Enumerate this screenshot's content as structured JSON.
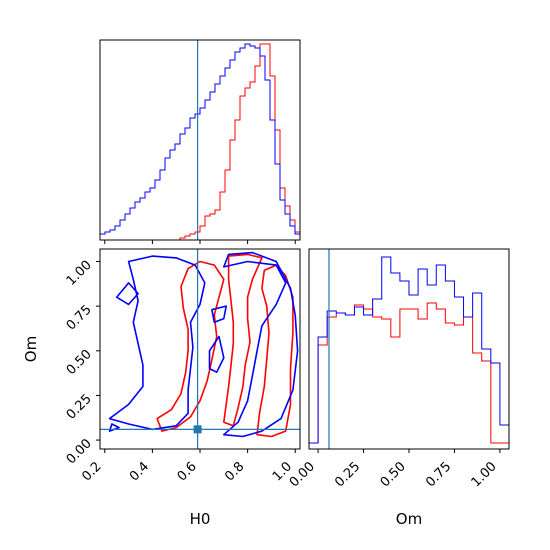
{
  "chart_data": {
    "type": "corner",
    "variables": [
      "H0",
      "Om"
    ],
    "truth": {
      "H0": 0.59,
      "Om": 0.06
    },
    "colors": {
      "red_series": "#ff0000",
      "blue_series": "#0000ff",
      "truth_line": "#1f77b4"
    },
    "panels": [
      {
        "id": "hist_H0",
        "type": "step-histogram",
        "xlim": [
          0.18,
          1.02
        ],
        "xticks": [
          0.2,
          0.4,
          0.6,
          0.8,
          1.0
        ],
        "tick_labels_shown": false,
        "bin_edges": [
          0.18,
          0.201,
          0.222,
          0.243,
          0.264,
          0.285,
          0.306,
          0.327,
          0.348,
          0.369,
          0.39,
          0.411,
          0.432,
          0.453,
          0.474,
          0.495,
          0.516,
          0.537,
          0.558,
          0.579,
          0.6,
          0.621,
          0.642,
          0.663,
          0.684,
          0.705,
          0.726,
          0.747,
          0.768,
          0.789,
          0.81,
          0.831,
          0.852,
          0.873,
          0.894,
          0.915,
          0.936,
          0.957,
          0.978,
          0.999,
          1.02
        ],
        "series": [
          {
            "name": "red",
            "values": [
              0,
              0,
              0,
              0,
              0,
              0,
              0,
              0,
              0,
              0,
              0,
              0,
              0,
              0,
              0,
              0,
              0.01,
              0.02,
              0.03,
              0.04,
              0.07,
              0.12,
              0.13,
              0.15,
              0.24,
              0.35,
              0.5,
              0.6,
              0.72,
              0.76,
              0.79,
              0.87,
              0.98,
              0.98,
              0.82,
              0.55,
              0.26,
              0.17,
              0.1,
              0.04
            ]
          },
          {
            "name": "blue",
            "values": [
              0.03,
              0.04,
              0.05,
              0.07,
              0.1,
              0.13,
              0.16,
              0.19,
              0.21,
              0.24,
              0.26,
              0.3,
              0.35,
              0.41,
              0.45,
              0.48,
              0.53,
              0.56,
              0.61,
              0.63,
              0.66,
              0.7,
              0.74,
              0.78,
              0.82,
              0.86,
              0.9,
              0.94,
              0.96,
              0.98,
              0.97,
              0.96,
              0.92,
              0.8,
              0.6,
              0.38,
              0.2,
              0.13,
              0.07,
              0.03
            ]
          }
        ]
      },
      {
        "id": "contour_H0_Om",
        "type": "contour",
        "xlabel": "H0",
        "ylabel": "Om",
        "xlim": [
          0.18,
          1.02
        ],
        "ylim": [
          -0.05,
          1.07
        ],
        "xticks": [
          0.2,
          0.4,
          0.6,
          0.8,
          1.0
        ],
        "xtick_labels": [
          "0.2",
          "0.4",
          "0.6",
          "0.8",
          "1.0"
        ],
        "yticks": [
          0.0,
          0.25,
          0.5,
          0.75,
          1.0
        ],
        "ytick_labels": [
          "0.00",
          "0.25",
          "0.50",
          "0.75",
          "1.00"
        ],
        "series": [
          {
            "name": "red",
            "contours": [
              [
                [
                  0.55,
                  0.96
                ],
                [
                  0.6,
                  1.0
                ],
                [
                  0.66,
                  0.98
                ],
                [
                  0.7,
                  0.9
                ],
                [
                  0.68,
                  0.8
                ],
                [
                  0.66,
                  0.7
                ],
                [
                  0.67,
                  0.58
                ],
                [
                  0.65,
                  0.45
                ],
                [
                  0.63,
                  0.33
                ],
                [
                  0.6,
                  0.22
                ],
                [
                  0.56,
                  0.13
                ],
                [
                  0.5,
                  0.07
                ],
                [
                  0.44,
                  0.05
                ],
                [
                  0.42,
                  0.12
                ],
                [
                  0.48,
                  0.17
                ],
                [
                  0.52,
                  0.26
                ],
                [
                  0.54,
                  0.38
                ],
                [
                  0.55,
                  0.5
                ],
                [
                  0.55,
                  0.62
                ],
                [
                  0.53,
                  0.74
                ],
                [
                  0.52,
                  0.86
                ]
              ],
              [
                [
                  0.72,
                  1.03
                ],
                [
                  0.8,
                  1.04
                ],
                [
                  0.86,
                  1.02
                ],
                [
                  0.82,
                  0.9
                ],
                [
                  0.8,
                  0.8
                ],
                [
                  0.8,
                  0.68
                ],
                [
                  0.81,
                  0.55
                ],
                [
                  0.79,
                  0.42
                ],
                [
                  0.78,
                  0.3
                ],
                [
                  0.76,
                  0.18
                ],
                [
                  0.74,
                  0.08
                ],
                [
                  0.7,
                  0.1
                ],
                [
                  0.71,
                  0.2
                ],
                [
                  0.72,
                  0.3
                ],
                [
                  0.73,
                  0.42
                ],
                [
                  0.74,
                  0.54
                ],
                [
                  0.74,
                  0.66
                ],
                [
                  0.73,
                  0.78
                ],
                [
                  0.72,
                  0.9
                ]
              ],
              [
                [
                  0.87,
                  0.95
                ],
                [
                  0.92,
                  0.98
                ],
                [
                  0.96,
                  0.92
                ],
                [
                  0.99,
                  0.8
                ],
                [
                  0.99,
                  0.6
                ],
                [
                  0.98,
                  0.4
                ],
                [
                  0.98,
                  0.2
                ],
                [
                  0.96,
                  0.05
                ],
                [
                  0.9,
                  0.02
                ],
                [
                  0.84,
                  0.03
                ],
                [
                  0.85,
                  0.15
                ],
                [
                  0.87,
                  0.3
                ],
                [
                  0.88,
                  0.45
                ],
                [
                  0.89,
                  0.6
                ],
                [
                  0.88,
                  0.75
                ],
                [
                  0.86,
                  0.85
                ]
              ]
            ]
          },
          {
            "name": "blue",
            "contours": [
              [
                [
                  0.3,
                  1.0
                ],
                [
                  0.4,
                  1.03
                ],
                [
                  0.5,
                  1.02
                ],
                [
                  0.58,
                  0.98
                ],
                [
                  0.62,
                  0.88
                ],
                [
                  0.6,
                  0.76
                ],
                [
                  0.56,
                  0.66
                ],
                [
                  0.57,
                  0.52
                ],
                [
                  0.56,
                  0.4
                ],
                [
                  0.55,
                  0.28
                ],
                [
                  0.55,
                  0.15
                ],
                [
                  0.5,
                  0.08
                ],
                [
                  0.4,
                  0.06
                ],
                [
                  0.3,
                  0.09
                ],
                [
                  0.22,
                  0.12
                ],
                [
                  0.3,
                  0.2
                ],
                [
                  0.36,
                  0.3
                ],
                [
                  0.36,
                  0.42
                ],
                [
                  0.34,
                  0.54
                ],
                [
                  0.32,
                  0.66
                ],
                [
                  0.34,
                  0.78
                ],
                [
                  0.32,
                  0.9
                ]
              ],
              [
                [
                  0.65,
                  0.73
                ],
                [
                  0.71,
                  0.75
                ],
                [
                  0.7,
                  0.68
                ],
                [
                  0.66,
                  0.66
                ]
              ],
              [
                [
                  0.64,
                  0.5
                ],
                [
                  0.68,
                  0.58
                ],
                [
                  0.7,
                  0.46
                ],
                [
                  0.67,
                  0.38
                ],
                [
                  0.64,
                  0.4
                ]
              ],
              [
                [
                  0.7,
                  0.97
                ],
                [
                  0.8,
                  1.0
                ],
                [
                  0.92,
                  0.98
                ],
                [
                  0.96,
                  0.88
                ],
                [
                  0.92,
                  0.76
                ],
                [
                  0.86,
                  0.64
                ],
                [
                  0.84,
                  0.5
                ],
                [
                  0.82,
                  0.36
                ],
                [
                  0.8,
                  0.22
                ],
                [
                  0.76,
                  0.1
                ],
                [
                  0.7,
                  0.03
                ],
                [
                  0.78,
                  0.02
                ],
                [
                  0.86,
                  0.05
                ],
                [
                  0.94,
                  0.12
                ],
                [
                  0.99,
                  0.28
                ],
                [
                  1.01,
                  0.5
                ],
                [
                  1.0,
                  0.7
                ],
                [
                  0.98,
                  0.85
                ],
                [
                  0.92,
                  1.0
                ],
                [
                  0.82,
                  1.05
                ],
                [
                  0.72,
                  1.04
                ]
              ],
              [
                [
                  0.25,
                  0.8
                ],
                [
                  0.3,
                  0.88
                ],
                [
                  0.34,
                  0.82
                ],
                [
                  0.3,
                  0.76
                ]
              ],
              [
                [
                  0.22,
                  0.05
                ],
                [
                  0.26,
                  0.07
                ],
                [
                  0.23,
                  0.09
                ]
              ]
            ]
          }
        ],
        "truth_point": [
          0.59,
          0.06
        ]
      },
      {
        "id": "hist_Om",
        "type": "step-histogram",
        "xlabel": "Om",
        "xlim": [
          -0.05,
          1.05
        ],
        "xticks": [
          0.0,
          0.25,
          0.5,
          0.75,
          1.0
        ],
        "xtick_labels": [
          "0.00",
          "0.25",
          "0.50",
          "0.75",
          "1.00"
        ],
        "bin_edges": [
          -0.05,
          0.0,
          0.05,
          0.1,
          0.15,
          0.2,
          0.25,
          0.3,
          0.35,
          0.4,
          0.45,
          0.5,
          0.55,
          0.6,
          0.65,
          0.7,
          0.75,
          0.8,
          0.85,
          0.9,
          0.95,
          1.0,
          1.05
        ],
        "series": [
          {
            "name": "red",
            "values": [
              0.03,
              0.52,
              0.66,
              0.68,
              0.67,
              0.72,
              0.7,
              0.66,
              0.65,
              0.56,
              0.7,
              0.7,
              0.65,
              0.73,
              0.7,
              0.63,
              0.62,
              0.66,
              0.48,
              0.44,
              0.03,
              0.03
            ]
          },
          {
            "name": "blue",
            "values": [
              0.03,
              0.56,
              0.69,
              0.68,
              0.67,
              0.71,
              0.67,
              0.75,
              0.96,
              0.88,
              0.84,
              0.77,
              0.9,
              0.82,
              0.92,
              0.84,
              0.76,
              0.66,
              0.78,
              0.5,
              0.43,
              0.12
            ]
          }
        ]
      }
    ]
  }
}
